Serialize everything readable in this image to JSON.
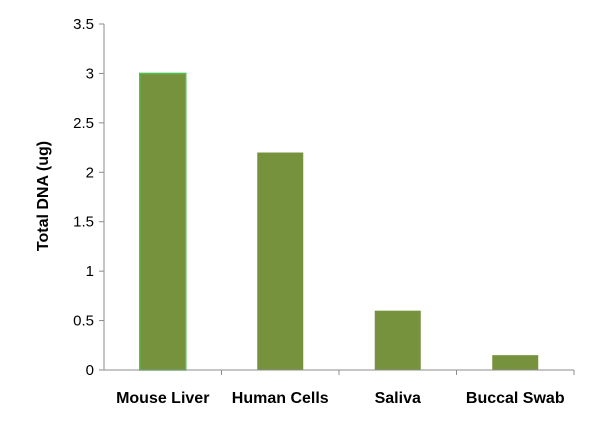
{
  "chart_data": {
    "type": "bar",
    "title": "",
    "xlabel": "",
    "ylabel": "Total DNA (ug)",
    "categories": [
      "Mouse Liver",
      "Human Cells",
      "Saliva",
      "Buccal Swab"
    ],
    "values": [
      3.0,
      2.2,
      0.6,
      0.15
    ],
    "ylim": [
      0,
      3.5
    ],
    "yticks": [
      "0",
      "0.5",
      "1",
      "1.5",
      "2",
      "2.5",
      "3",
      "3.5"
    ],
    "grid": false,
    "legend": "none",
    "bar_color": "#76923C",
    "first_bar_outline": "#4FBF4F"
  }
}
